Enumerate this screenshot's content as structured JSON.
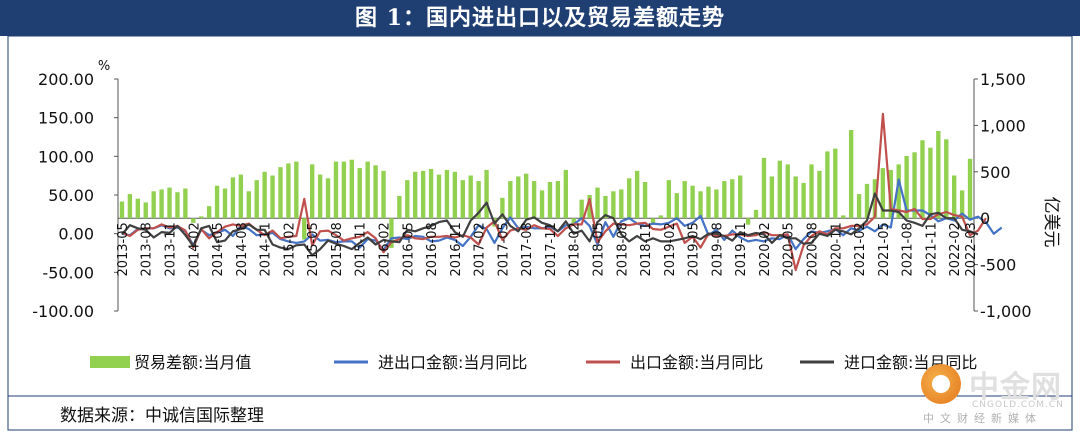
{
  "title": "图 1：国内进出口以及贸易差额走势",
  "source": "数据来源：中诚信国际整理",
  "logo": {
    "text": "中金网",
    "url": "CNGOLD.COM.CN",
    "sub": "中文财经新媒体"
  },
  "colors": {
    "banner": "#1f3f73",
    "bar": "#92d050",
    "total": "#4472c4",
    "export": "#c0504d",
    "import": "#404040"
  },
  "chart_data": {
    "type": "bar+line",
    "title": "图 1：国内进出口以及贸易差额走势",
    "xlabel": "",
    "ylabel_left": "%",
    "ylabel_right": "亿美元",
    "ylim_left": [
      -100,
      200
    ],
    "ylim_right": [
      -1000,
      1500
    ],
    "yticks_left": [
      "200.00",
      "150.00",
      "100.00",
      "50.00",
      "0.00",
      "-50.00",
      "-100.00"
    ],
    "yticks_right": [
      "1,500",
      "1,000",
      "500",
      "0",
      "-500",
      "-1,000"
    ],
    "x_start": "2013-05",
    "x_end": "2022-03",
    "x_tick_labels": [
      "2013-05",
      "2013-08",
      "2013-11",
      "2014-02",
      "2014-05",
      "2014-08",
      "2014-11",
      "2015-02",
      "2015-05",
      "2015-08",
      "2015-11",
      "2016-02",
      "2016-05",
      "2016-08",
      "2016-11",
      "2017-02",
      "2017-05",
      "2017-08",
      "2017-11",
      "2018-02",
      "2018-05",
      "2018-08",
      "2018-11",
      "2019-02",
      "2019-05",
      "2019-08",
      "2019-11",
      "2020-02",
      "2020-05",
      "2020-08",
      "2020-11",
      "2021-02",
      "2021-05",
      "2021-08",
      "2021-11",
      "2022-02",
      "2022-03"
    ],
    "grid": false,
    "legend_position": "bottom",
    "series": [
      {
        "name": "贸易差额:当月值",
        "type": "bar",
        "axis": "right",
        "values": [
          180,
          260,
          210,
          170,
          290,
          310,
          330,
          280,
          320,
          -50,
          20,
          130,
          350,
          320,
          440,
          470,
          290,
          410,
          500,
          460,
          550,
          590,
          610,
          -230,
          580,
          470,
          430,
          610,
          610,
          630,
          540,
          610,
          570,
          510,
          -320,
          240,
          410,
          500,
          510,
          530,
          470,
          520,
          500,
          410,
          460,
          400,
          520,
          -90,
          220,
          400,
          450,
          480,
          400,
          300,
          390,
          400,
          520,
          -60,
          200,
          250,
          330,
          240,
          290,
          310,
          430,
          510,
          390,
          -70,
          30,
          410,
          270,
          400,
          350,
          290,
          340,
          310,
          400,
          420,
          460,
          -70,
          90,
          650,
          450,
          620,
          580,
          450,
          380,
          580,
          510,
          720,
          750,
          30,
          950,
          260,
          370,
          420,
          540,
          520,
          580,
          670,
          710,
          840,
          760,
          940,
          850,
          460,
          300,
          640
        ],
        "style": "green"
      },
      {
        "name": "进出口金额:当月同比",
        "type": "line",
        "axis": "left",
        "values": [
          0,
          -2,
          6,
          7,
          7,
          11,
          7,
          8,
          3,
          -15,
          5,
          -2,
          1,
          5,
          -3,
          10,
          6,
          -2,
          -1,
          1,
          -7,
          -10,
          -12,
          -10,
          -1,
          -9,
          -8,
          -11,
          -10,
          -10,
          -18,
          -7,
          -9,
          -21,
          -6,
          -5,
          -7,
          -3,
          -4,
          -10,
          -9,
          -5,
          -8,
          -16,
          -4,
          11,
          6,
          -12,
          7,
          21,
          7,
          9,
          7,
          7,
          9,
          3,
          11,
          12,
          20,
          10,
          -14,
          15,
          -4,
          16,
          20,
          13,
          10,
          13,
          12,
          14,
          20,
          10,
          14,
          23,
          -2,
          5,
          -8,
          4,
          -5,
          -10,
          -8,
          -10,
          -6,
          -7,
          -1,
          -20,
          -7,
          3,
          1,
          3,
          6,
          -2,
          7,
          4,
          9,
          3,
          12,
          8,
          70,
          30,
          30,
          30,
          24,
          16,
          20,
          17,
          26,
          18,
          22,
          15,
          0,
          8
        ],
        "style": "blue"
      },
      {
        "name": "出口金额:当月同比",
        "type": "line",
        "axis": "left",
        "values": [
          1,
          -3,
          5,
          7,
          7,
          12,
          8,
          10,
          4,
          -18,
          6,
          -6,
          2,
          9,
          12,
          10,
          13,
          5,
          -2,
          4,
          -6,
          -4,
          -3,
          45,
          -15,
          3,
          4,
          -2,
          -9,
          -6,
          -4,
          2,
          -6,
          -24,
          -11,
          -7,
          -2,
          -6,
          -7,
          -4,
          -4,
          -3,
          -5,
          -2,
          -5,
          -14,
          8,
          16,
          -8,
          4,
          7,
          5,
          11,
          7,
          6,
          -3,
          7,
          12,
          12,
          45,
          -11,
          3,
          13,
          12,
          11,
          13,
          14,
          6,
          5,
          9,
          13,
          -12,
          -4,
          -18,
          0,
          -3,
          -3,
          -1,
          -1,
          -3,
          -2,
          2,
          -2,
          -2,
          -1,
          -47,
          -15,
          -3,
          3,
          -1,
          7,
          7,
          10,
          10,
          12,
          22,
          155,
          32,
          30,
          28,
          32,
          19,
          19,
          25,
          28,
          24,
          22,
          -2,
          4,
          20
        ],
        "style": "red"
      },
      {
        "name": "进口金额:当月同比",
        "type": "line",
        "axis": "left",
        "values": [
          -1,
          11,
          7,
          5,
          -5,
          2,
          1,
          10,
          -2,
          -16,
          7,
          10,
          -11,
          -9,
          3,
          6,
          12,
          5,
          5,
          -14,
          -18,
          -20,
          -15,
          -14,
          -28,
          -20,
          -9,
          -13,
          -16,
          -20,
          -12,
          -5,
          -14,
          -8,
          -10,
          -11,
          5,
          3,
          7,
          10,
          15,
          17,
          2,
          -4,
          17,
          27,
          40,
          13,
          25,
          10,
          3,
          18,
          21,
          14,
          11,
          3,
          16,
          0,
          4,
          -10,
          15,
          24,
          20,
          -1,
          -10,
          -3,
          -10,
          -6,
          -10,
          -10,
          -8,
          -6,
          -3,
          -7,
          0,
          0,
          -3,
          -9,
          2,
          -2,
          1,
          -1,
          -12,
          -2,
          -6,
          -6,
          -13,
          -12,
          0,
          -3,
          5,
          3,
          -1,
          7,
          17,
          52,
          30,
          30,
          28,
          17,
          14,
          10,
          25,
          27,
          20,
          20,
          5,
          3,
          -1
        ],
        "style": "black"
      }
    ]
  }
}
